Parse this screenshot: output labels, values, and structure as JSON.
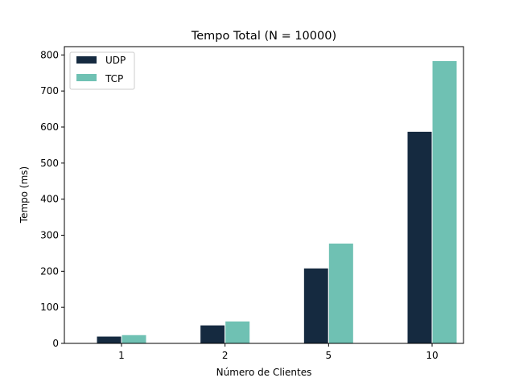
{
  "chart_data": {
    "type": "bar",
    "title": "Tempo Total (N = 10000)",
    "xlabel": "Número de Clientes",
    "ylabel": "Tempo (ms)",
    "categories": [
      "1",
      "2",
      "5",
      "10"
    ],
    "series": [
      {
        "name": "UDP",
        "values": [
          20,
          51,
          209,
          588
        ],
        "color": "#152a40"
      },
      {
        "name": "TCP",
        "values": [
          24,
          62,
          278,
          784
        ],
        "color": "#6fc1b3"
      }
    ],
    "ylim": [
      0,
      823
    ],
    "yticks": [
      0,
      100,
      200,
      300,
      400,
      500,
      600,
      700,
      800
    ],
    "grid": false,
    "legend_position": "top-left"
  }
}
